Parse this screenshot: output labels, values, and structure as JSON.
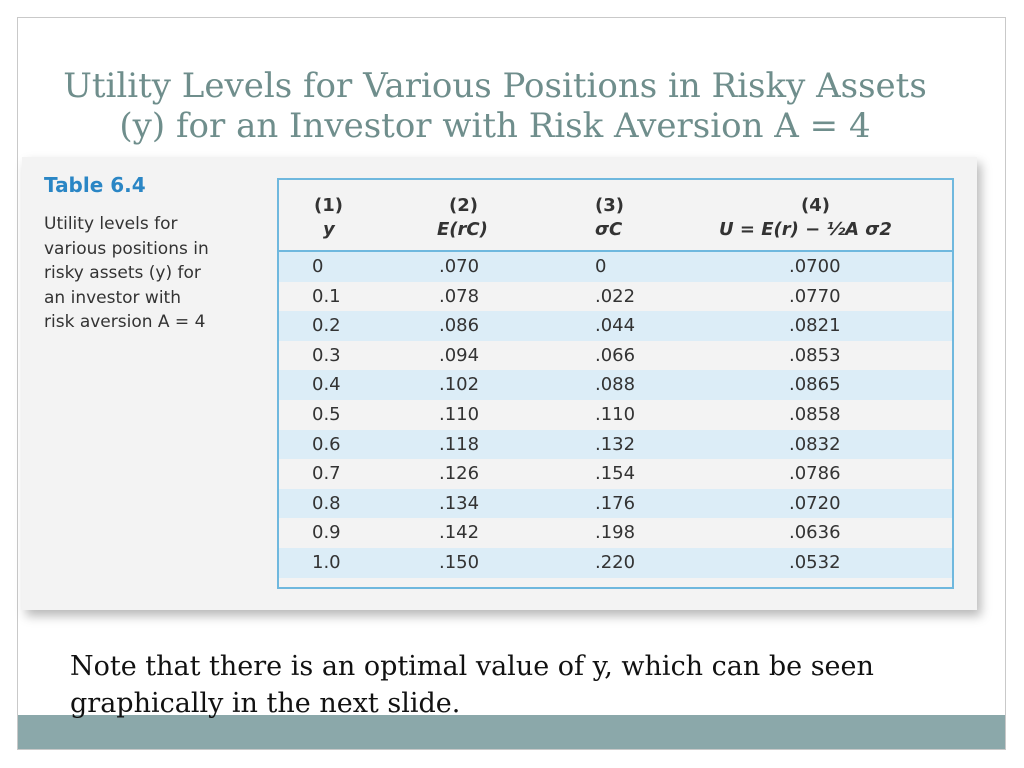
{
  "slide": {
    "title_line1": "Utility Levels for Various Positions in Risky Assets",
    "title_line2": "(y) for an Investor with Risk Aversion A = 4",
    "note_line1": "Note that there is an optimal value of y, which can be seen",
    "note_line2": "graphically in the next slide."
  },
  "figure": {
    "caption_title": "Table 6.4",
    "caption_lines": [
      "Utility levels for",
      "various positions in",
      "risky assets (y) for",
      "an investor with",
      "risk aversion A = 4"
    ],
    "headers": [
      {
        "num": "(1)",
        "label": "y"
      },
      {
        "num": "(2)",
        "label": "E(rC)"
      },
      {
        "num": "(3)",
        "label": "σC"
      },
      {
        "num": "(4)",
        "label": "U = E(r) − ½A σ2"
      }
    ],
    "rows": [
      [
        "0",
        ".070",
        "0",
        ".0700"
      ],
      [
        "0.1",
        ".078",
        ".022",
        ".0770"
      ],
      [
        "0.2",
        ".086",
        ".044",
        ".0821"
      ],
      [
        "0.3",
        ".094",
        ".066",
        ".0853"
      ],
      [
        "0.4",
        ".102",
        ".088",
        ".0865"
      ],
      [
        "0.5",
        ".110",
        ".110",
        ".0858"
      ],
      [
        "0.6",
        ".118",
        ".132",
        ".0832"
      ],
      [
        "0.7",
        ".126",
        ".154",
        ".0786"
      ],
      [
        "0.8",
        ".134",
        ".176",
        ".0720"
      ],
      [
        "0.9",
        ".142",
        ".198",
        ".0636"
      ],
      [
        "1.0",
        ".150",
        ".220",
        ".0532"
      ]
    ]
  },
  "colors": {
    "title": "#6f8e8c",
    "accent": "#2a86c5",
    "table_border": "#6fb8de",
    "row_shade": "#dcedf7",
    "footer_bar": "#8ba8aa"
  }
}
